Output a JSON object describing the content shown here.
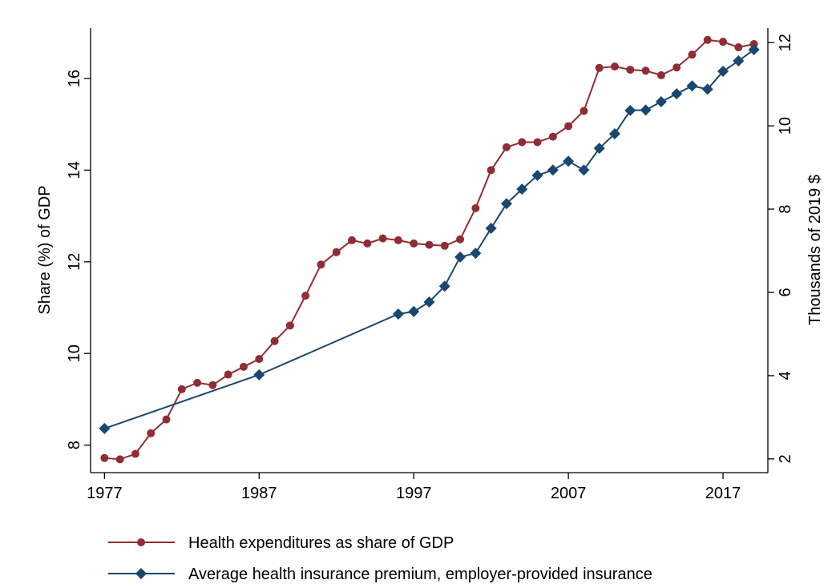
{
  "chart_data": {
    "type": "line",
    "y_label": "Share (%) of GDP",
    "y2_label": "Thousands of 2019 $",
    "xlim": [
      1976.1,
      2019.9
    ],
    "xticks": [
      1977,
      1987,
      1997,
      2007,
      2017
    ],
    "ylim": [
      7.4,
      17.1
    ],
    "yticks": [
      8,
      10,
      12,
      14,
      16
    ],
    "y2lim": [
      1.67,
      12.35
    ],
    "y2ticks": [
      2,
      4,
      6,
      8,
      10,
      12
    ],
    "series": [
      {
        "name": "Health expenditures as share of GDP",
        "color": "#902c34",
        "marker": "circle",
        "x": [
          1977,
          1978,
          1979,
          1980,
          1981,
          1982,
          1983,
          1984,
          1985,
          1986,
          1987,
          1988,
          1989,
          1990,
          1991,
          1992,
          1993,
          1994,
          1995,
          1996,
          1997,
          1998,
          1999,
          2000,
          2001,
          2002,
          2003,
          2004,
          2005,
          2006,
          2007,
          2008,
          2009,
          2010,
          2011,
          2012,
          2013,
          2014,
          2015,
          2016,
          2017,
          2018,
          2019
        ],
        "values": [
          7.72,
          7.69,
          7.81,
          8.26,
          8.56,
          9.22,
          9.36,
          9.31,
          9.54,
          9.71,
          9.88,
          10.27,
          10.61,
          11.26,
          11.94,
          12.21,
          12.47,
          12.4,
          12.51,
          12.47,
          12.4,
          12.37,
          12.35,
          12.49,
          13.17,
          14.0,
          14.5,
          14.61,
          14.61,
          14.73,
          14.96,
          15.29,
          16.23,
          16.26,
          16.19,
          16.17,
          16.07,
          16.24,
          16.52,
          16.84,
          16.8,
          16.68,
          16.75
        ]
      },
      {
        "name": "Average health insurance premium, employer-provided insurance",
        "color": "#1a476f",
        "marker": "diamond",
        "axis": "y2",
        "x": [
          1977,
          1987,
          1996,
          1997,
          1998,
          1999,
          2000,
          2001,
          2002,
          2003,
          2004,
          2005,
          2006,
          2007,
          2008,
          2009,
          2010,
          2011,
          2012,
          2013,
          2014,
          2015,
          2016,
          2017,
          2018,
          2019
        ],
        "values": [
          2.73,
          4.02,
          5.48,
          5.54,
          5.77,
          6.15,
          6.85,
          6.94,
          7.54,
          8.13,
          8.48,
          8.81,
          8.94,
          9.15,
          8.94,
          9.46,
          9.81,
          10.37,
          10.38,
          10.58,
          10.77,
          10.96,
          10.88,
          11.31,
          11.56,
          11.83
        ]
      }
    ]
  }
}
